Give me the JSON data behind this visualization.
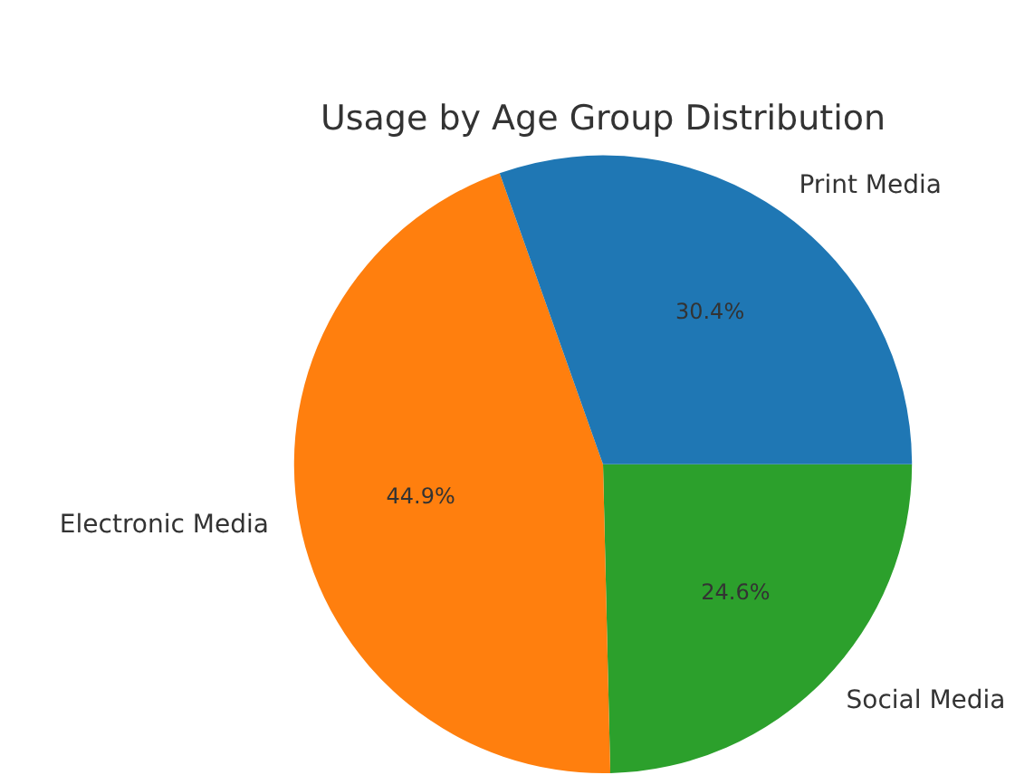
{
  "chart_data": {
    "type": "pie",
    "title": "Usage by Age Group Distribution",
    "categories": [
      "Print Media",
      "Electronic Media",
      "Social Media"
    ],
    "values": [
      30.4,
      44.9,
      24.6
    ],
    "colors": [
      "#1f77b4",
      "#ff7f0e",
      "#2ca02c"
    ],
    "value_labels": [
      "30.4%",
      "44.9%",
      "24.6%"
    ],
    "legend": false
  }
}
